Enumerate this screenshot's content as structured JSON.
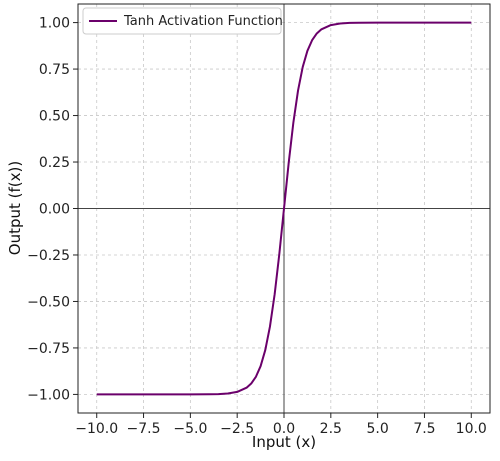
{
  "chart_data": {
    "type": "line",
    "title": "",
    "xlabel": "Input (x)",
    "ylabel": "Output (f(x))",
    "xlim": [
      -11,
      11
    ],
    "ylim": [
      -1.1,
      1.1
    ],
    "x_ticks": [
      -10.0,
      -7.5,
      -5.0,
      -2.5,
      0.0,
      2.5,
      5.0,
      7.5,
      10.0
    ],
    "x_tick_labels": [
      "−10.0",
      "−7.5",
      "−5.0",
      "−2.5",
      "0.0",
      "2.5",
      "5.0",
      "7.5",
      "10.0"
    ],
    "y_ticks": [
      1.0,
      0.75,
      0.5,
      0.25,
      0.0,
      -0.25,
      -0.5,
      -0.75,
      -1.0
    ],
    "y_tick_labels": [
      "1.00",
      "0.75",
      "0.50",
      "0.25",
      "0.00",
      "−0.25",
      "−0.50",
      "−0.75",
      "−1.00"
    ],
    "grid": true,
    "legend_position": "top-left",
    "series": [
      {
        "name": "Tanh Activation Function",
        "color": "#6b006b",
        "x": [
          -10,
          -9,
          -8,
          -7,
          -6,
          -5,
          -4,
          -3.5,
          -3,
          -2.5,
          -2,
          -1.75,
          -1.5,
          -1.25,
          -1,
          -0.75,
          -0.5,
          -0.25,
          0,
          0.25,
          0.5,
          0.75,
          1,
          1.25,
          1.5,
          1.75,
          2,
          2.5,
          3,
          3.5,
          4,
          5,
          6,
          7,
          8,
          9,
          10
        ],
        "y": [
          -1.0,
          -1.0,
          -1.0,
          -1.0,
          -1.0,
          -0.9999,
          -0.9993,
          -0.9982,
          -0.9951,
          -0.9866,
          -0.964,
          -0.9414,
          -0.9051,
          -0.8483,
          -0.7616,
          -0.6351,
          -0.4621,
          -0.2449,
          0.0,
          0.2449,
          0.4621,
          0.6351,
          0.7616,
          0.8483,
          0.9051,
          0.9414,
          0.964,
          0.9866,
          0.9951,
          0.9982,
          0.9993,
          0.9999,
          1.0,
          1.0,
          1.0,
          1.0,
          1.0
        ]
      }
    ]
  },
  "colors": {
    "line": "#6b006b",
    "grid": "#c8c8c8",
    "zero_axes": "#444444"
  }
}
